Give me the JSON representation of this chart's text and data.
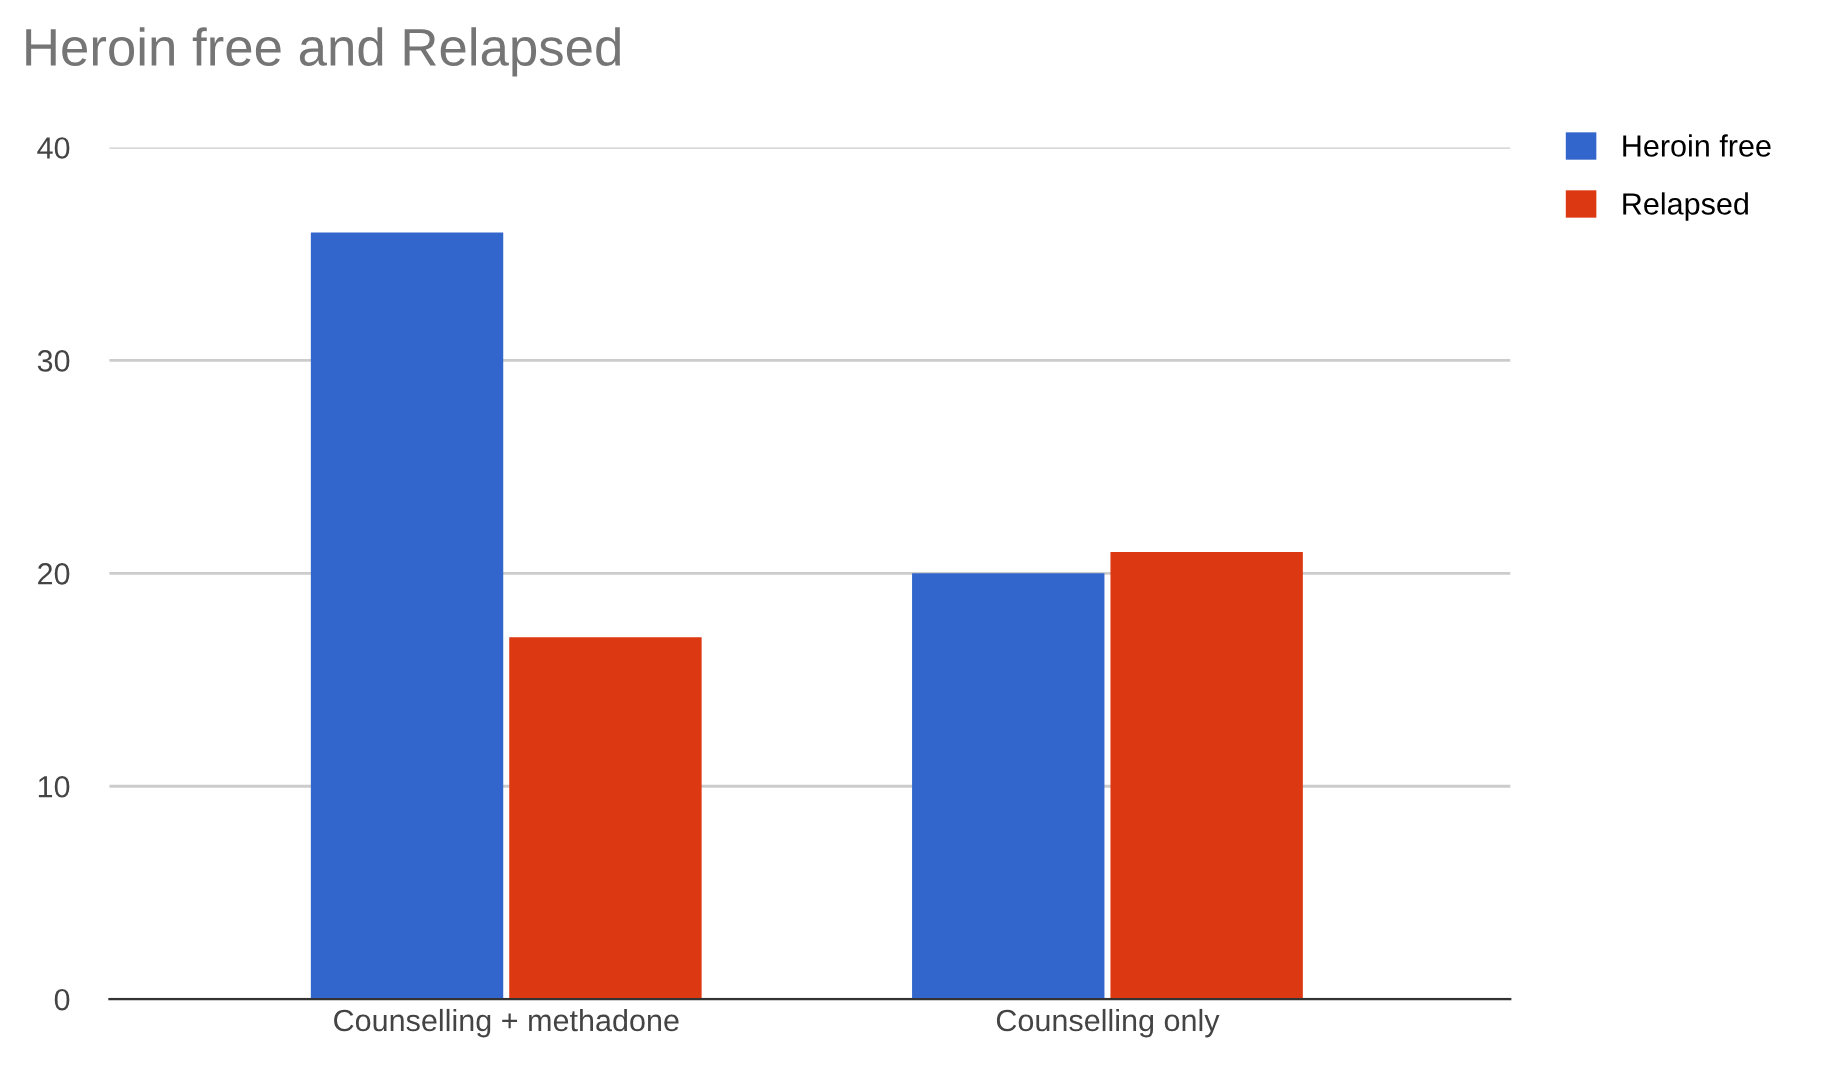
{
  "chart_data": {
    "type": "bar",
    "title": "Heroin free and Relapsed",
    "categories": [
      "Counselling + methadone",
      "Counselling only"
    ],
    "series": [
      {
        "name": "Heroin free",
        "color": "#3366cc",
        "values": [
          36,
          20
        ]
      },
      {
        "name": "Relapsed",
        "color": "#dc3912",
        "values": [
          17,
          21
        ]
      }
    ],
    "ylim": [
      0,
      40
    ],
    "yticks": [
      0,
      10,
      20,
      30,
      40
    ],
    "grid": "y",
    "legend": "top right"
  }
}
